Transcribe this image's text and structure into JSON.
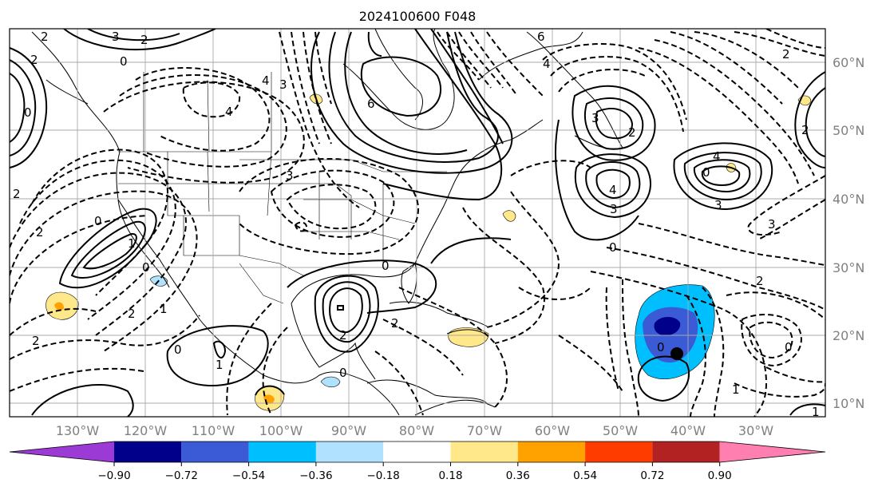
{
  "title": "2024100600 F048",
  "lon_labels": [
    "130°W",
    "120°W",
    "110°W",
    "100°W",
    "90°W",
    "80°W",
    "70°W",
    "60°W",
    "50°W",
    "40°W",
    "30°W"
  ],
  "lat_labels": [
    "60°N",
    "50°N",
    "40°N",
    "30°N",
    "20°N",
    "10°N"
  ],
  "colorbar": {
    "ticks": [
      "−0.90",
      "−0.72",
      "−0.54",
      "−0.36",
      "−0.18",
      "0.18",
      "0.36",
      "0.54",
      "0.72",
      "0.90"
    ],
    "colors": [
      "#9b3ad4",
      "#00008b",
      "#3b5bd6",
      "#00bfff",
      "#b0e2ff",
      "#ffffff",
      "#ffe88a",
      "#ffa200",
      "#ff3c00",
      "#b22222",
      "#ff7fb0"
    ]
  },
  "contour_labels": [
    "2",
    "3",
    "2",
    "0",
    "4",
    "4",
    "3",
    "6",
    "6",
    "4",
    "3",
    "3",
    "2",
    "4",
    "4",
    "3",
    "3",
    "0",
    "2",
    "2",
    "2",
    "0",
    "2",
    "2",
    "0",
    "1",
    "0",
    "0",
    "1",
    "2",
    "2",
    "1",
    "3",
    "2",
    "0",
    "2",
    "0",
    "0",
    "0",
    "0",
    "2",
    "1",
    "1"
  ],
  "colors": {
    "frame": "#000000",
    "grid": "#a8a8a8",
    "axis_text": "#808080"
  }
}
